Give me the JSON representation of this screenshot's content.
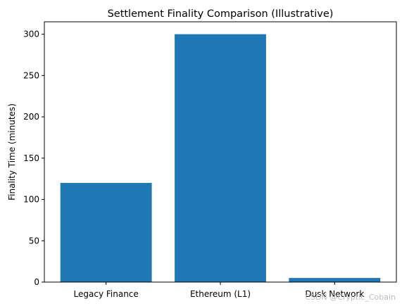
{
  "chart_data": {
    "type": "bar",
    "title": "Settlement Finality Comparison (Illustrative)",
    "xlabel": "",
    "ylabel": "Finality Time (minutes)",
    "categories": [
      "Legacy Finance",
      "Ethereum (L1)",
      "Dusk Network"
    ],
    "values": [
      120,
      300,
      5
    ],
    "ylim": [
      0,
      315
    ],
    "yticks": [
      0,
      50,
      100,
      150,
      200,
      250,
      300
    ],
    "grid": false,
    "legend": "none",
    "bar_color": "#1f77b4"
  },
  "watermark": "CSDN @Cryptic_Cobain"
}
